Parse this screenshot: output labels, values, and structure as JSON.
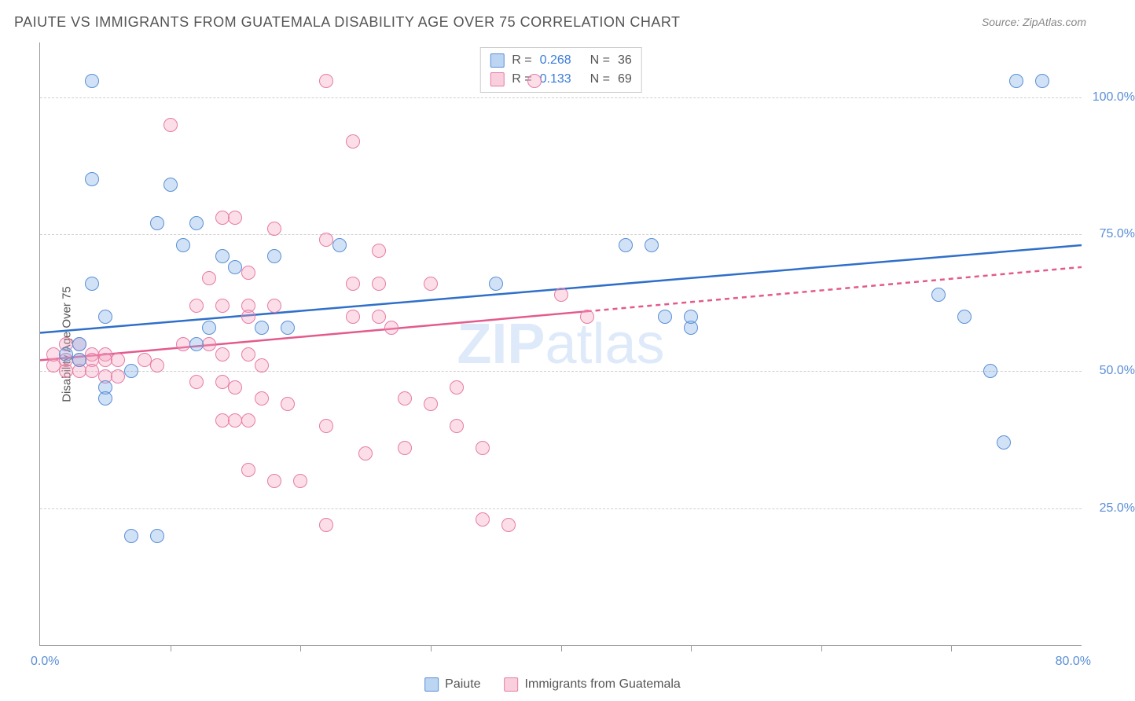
{
  "title": "PAIUTE VS IMMIGRANTS FROM GUATEMALA DISABILITY AGE OVER 75 CORRELATION CHART",
  "source": "Source: ZipAtlas.com",
  "watermark_a": "ZIP",
  "watermark_b": "atlas",
  "ylabel": "Disability Age Over 75",
  "chart": {
    "type": "scatter",
    "xlim": [
      0,
      80
    ],
    "ylim": [
      0,
      110
    ],
    "xtick_step": 10,
    "ytick_labels": [
      {
        "v": 25,
        "label": "25.0%"
      },
      {
        "v": 50,
        "label": "50.0%"
      },
      {
        "v": 75,
        "label": "75.0%"
      },
      {
        "v": 100,
        "label": "100.0%"
      }
    ],
    "xlim_labels": {
      "min": "0.0%",
      "max": "80.0%"
    },
    "background_color": "#ffffff",
    "grid_color": "#d0d0d0",
    "marker_size": 18,
    "axis_color": "#999999"
  },
  "series": [
    {
      "name": "Paiute",
      "color_fill": "rgba(122,171,230,0.35)",
      "color_stroke": "#5a8fd6",
      "r_value": "0.268",
      "n_value": "36",
      "trend": {
        "x1": 0,
        "y1": 57,
        "x2": 80,
        "y2": 73,
        "dash_from_x": null,
        "stroke": "#2f6fc9",
        "width": 2.5
      },
      "points": [
        [
          4,
          103
        ],
        [
          75,
          103
        ],
        [
          77,
          103
        ],
        [
          4,
          85
        ],
        [
          10,
          84
        ],
        [
          9,
          77
        ],
        [
          12,
          77
        ],
        [
          11,
          73
        ],
        [
          23,
          73
        ],
        [
          14,
          71
        ],
        [
          18,
          71
        ],
        [
          15,
          69
        ],
        [
          4,
          66
        ],
        [
          35,
          66
        ],
        [
          45,
          73
        ],
        [
          48,
          60
        ],
        [
          5,
          60
        ],
        [
          13,
          58
        ],
        [
          17,
          58
        ],
        [
          19,
          58
        ],
        [
          5,
          47
        ],
        [
          5,
          45
        ],
        [
          12,
          55
        ],
        [
          7,
          50
        ],
        [
          3,
          55
        ],
        [
          3,
          52
        ],
        [
          73,
          50
        ],
        [
          71,
          60
        ],
        [
          69,
          64
        ],
        [
          47,
          73
        ],
        [
          7,
          20
        ],
        [
          9,
          20
        ],
        [
          74,
          37
        ],
        [
          2,
          53
        ],
        [
          50,
          58
        ],
        [
          50,
          60
        ]
      ]
    },
    {
      "name": "Immigrants from Guatemala",
      "color_fill": "rgba(244,160,188,0.35)",
      "color_stroke": "#e77ba5",
      "r_value": "0.133",
      "n_value": "69",
      "trend": {
        "x1": 0,
        "y1": 52,
        "x2": 80,
        "y2": 69,
        "dash_from_x": 42,
        "stroke": "#e35a8c",
        "width": 2.5
      },
      "points": [
        [
          22,
          103
        ],
        [
          38,
          103
        ],
        [
          10,
          95
        ],
        [
          24,
          92
        ],
        [
          14,
          78
        ],
        [
          15,
          78
        ],
        [
          18,
          76
        ],
        [
          22,
          74
        ],
        [
          26,
          72
        ],
        [
          16,
          68
        ],
        [
          13,
          67
        ],
        [
          12,
          62
        ],
        [
          14,
          62
        ],
        [
          16,
          62
        ],
        [
          18,
          62
        ],
        [
          16,
          60
        ],
        [
          24,
          66
        ],
        [
          26,
          66
        ],
        [
          30,
          66
        ],
        [
          24,
          60
        ],
        [
          26,
          60
        ],
        [
          27,
          58
        ],
        [
          11,
          55
        ],
        [
          13,
          55
        ],
        [
          14,
          53
        ],
        [
          16,
          53
        ],
        [
          17,
          51
        ],
        [
          2,
          55
        ],
        [
          3,
          55
        ],
        [
          4,
          53
        ],
        [
          5,
          53
        ],
        [
          5,
          52
        ],
        [
          6,
          52
        ],
        [
          2,
          52
        ],
        [
          3,
          52
        ],
        [
          4,
          52
        ],
        [
          2,
          50
        ],
        [
          3,
          50
        ],
        [
          4,
          50
        ],
        [
          5,
          49
        ],
        [
          6,
          49
        ],
        [
          1,
          51
        ],
        [
          1,
          53
        ],
        [
          8,
          52
        ],
        [
          9,
          51
        ],
        [
          12,
          48
        ],
        [
          14,
          48
        ],
        [
          15,
          47
        ],
        [
          17,
          45
        ],
        [
          19,
          44
        ],
        [
          14,
          41
        ],
        [
          15,
          41
        ],
        [
          16,
          41
        ],
        [
          22,
          40
        ],
        [
          28,
          45
        ],
        [
          30,
          44
        ],
        [
          32,
          40
        ],
        [
          34,
          36
        ],
        [
          25,
          35
        ],
        [
          16,
          32
        ],
        [
          18,
          30
        ],
        [
          20,
          30
        ],
        [
          34,
          23
        ],
        [
          36,
          22
        ],
        [
          28,
          36
        ],
        [
          22,
          22
        ],
        [
          32,
          47
        ],
        [
          40,
          64
        ],
        [
          42,
          60
        ]
      ]
    }
  ],
  "legend": {
    "series1_label": "Paiute",
    "series2_label": "Immigrants from Guatemala"
  }
}
